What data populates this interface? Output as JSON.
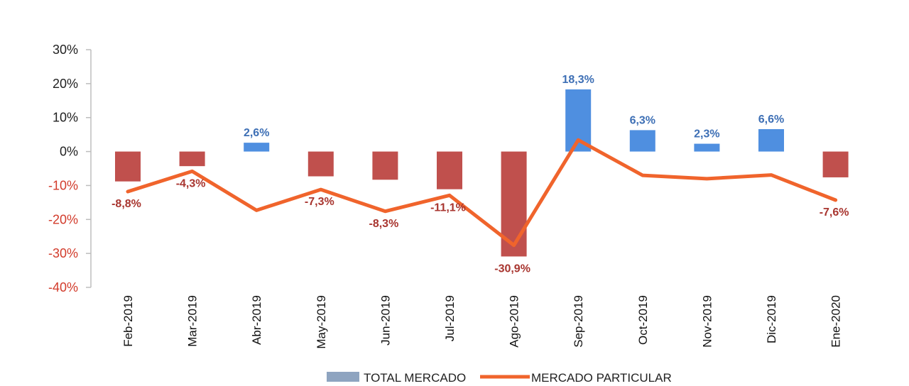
{
  "chart_data": {
    "type": "bar",
    "title": "",
    "xlabel": "",
    "ylabel": "",
    "ylim": [
      -40,
      30
    ],
    "yticks": [
      30,
      20,
      10,
      0,
      -10,
      -20,
      -30,
      -40
    ],
    "ytick_labels": [
      "30%",
      "20%",
      "10%",
      "0%",
      "-10%",
      "-20%",
      "-30%",
      "-40%"
    ],
    "categories": [
      "Feb-2019",
      "Mar-2019",
      "Abr-2019",
      "May-2019",
      "Jun-2019",
      "Jul-2019",
      "Ago-2019",
      "Sep-2019",
      "Oct-2019",
      "Nov-2019",
      "Dic-2019",
      "Ene-2020"
    ],
    "series": [
      {
        "name": "TOTAL MERCADO",
        "kind": "bar",
        "values": [
          -8.8,
          -4.3,
          2.6,
          -7.3,
          -8.3,
          -11.1,
          -30.9,
          18.3,
          6.3,
          2.3,
          6.6,
          -7.6
        ],
        "labels": [
          "-8,8%",
          "-4,3%",
          "2,6%",
          "-7,3%",
          "-8,3%",
          "-11,1%",
          "-30,9%",
          "18,3%",
          "6,3%",
          "2,3%",
          "6,6%",
          "-7,6%"
        ]
      },
      {
        "name": "MERCADO PARTICULAR",
        "kind": "line",
        "values": [
          -11.8,
          -5.8,
          -17.3,
          -11.2,
          -17.6,
          -12.9,
          -27.6,
          3.4,
          -7.0,
          -8.0,
          -6.9,
          -14.3
        ]
      }
    ],
    "colors": {
      "positive_bar": "#4f8fe0",
      "negative_bar": "#c0504d",
      "line": "#f0642c",
      "positive_tick": "#1f1f1f",
      "negative_tick": "#d23b2b",
      "positive_label": "#3d6fb5",
      "negative_label": "#a8352f",
      "legend_bar": "#8ea4c0",
      "axis": "#bdbdbd"
    },
    "legend_position": "bottom"
  }
}
